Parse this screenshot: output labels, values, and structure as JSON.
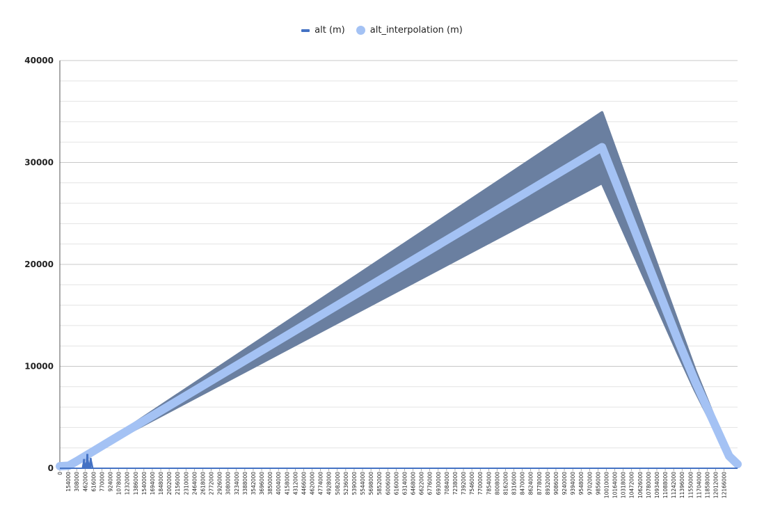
{
  "chart_data": {
    "type": "line",
    "title": "",
    "xlabel": "",
    "ylabel": "",
    "ylim": [
      0,
      40000
    ],
    "yticks": [
      0,
      10000,
      20000,
      30000,
      40000
    ],
    "grid": true,
    "legend_position": "top-center",
    "x_tick_labels": [
      "0",
      "154000",
      "308000",
      "462000",
      "616000",
      "770000",
      "924000",
      "1078000",
      "1232000",
      "1386000",
      "1540000",
      "1694000",
      "1848000",
      "2002000",
      "2156000",
      "2310000",
      "2464000",
      "2618000",
      "2772000",
      "2926000",
      "3080000",
      "3234000",
      "3388000",
      "3542000",
      "3696000",
      "3850000",
      "4004000",
      "4158000",
      "4312000",
      "4466000",
      "4620000",
      "4774000",
      "4928000",
      "5082000",
      "5236000",
      "5390000",
      "5544000",
      "5698000",
      "5852000",
      "6006000",
      "6160000",
      "6314000",
      "6468000",
      "6622000",
      "6776000",
      "6930000",
      "7084000",
      "7238000",
      "7392000",
      "7546000",
      "7700000",
      "7854000",
      "8008000",
      "8162000",
      "8316000",
      "8470000",
      "8624000",
      "8778000",
      "8932000",
      "9086000",
      "9240000",
      "9394000",
      "9548000",
      "9702000",
      "9856000",
      "10010000",
      "10164000",
      "10318000",
      "10472000",
      "10626000",
      "10780000",
      "10934000",
      "11088000",
      "11242000",
      "11396000",
      "11550000",
      "11704000",
      "11858000",
      "12012000",
      "12166000"
    ],
    "series": [
      {
        "name": "alt (m)",
        "color": "#4472c4",
        "x": [
          0,
          154000,
          308000,
          410000,
          440000,
          470000,
          500000,
          530000,
          560000,
          600000,
          12320000
        ],
        "y": [
          0,
          0,
          0,
          0,
          900,
          0,
          1400,
          0,
          1000,
          0,
          0
        ]
      },
      {
        "name": "alt_interpolation (m)",
        "color": "#a4c2f4",
        "band_color": "#6a7fa0",
        "x": [
          0,
          160000,
          308000,
          462000,
          616000,
          770000,
          924000,
          9856000,
          11242000,
          11550000,
          12166000,
          12320000
        ],
        "y": [
          200,
          250,
          700,
          1200,
          1700,
          2200,
          2700,
          31500,
          12500,
          8500,
          1200,
          400
        ],
        "band_upper": [
          200,
          250,
          700,
          1200,
          1750,
          2300,
          2850,
          34900,
          14200,
          9600,
          1400,
          400
        ],
        "band_lower": [
          200,
          250,
          700,
          1200,
          1650,
          2100,
          2550,
          28000,
          11200,
          7600,
          1000,
          400
        ]
      }
    ]
  }
}
